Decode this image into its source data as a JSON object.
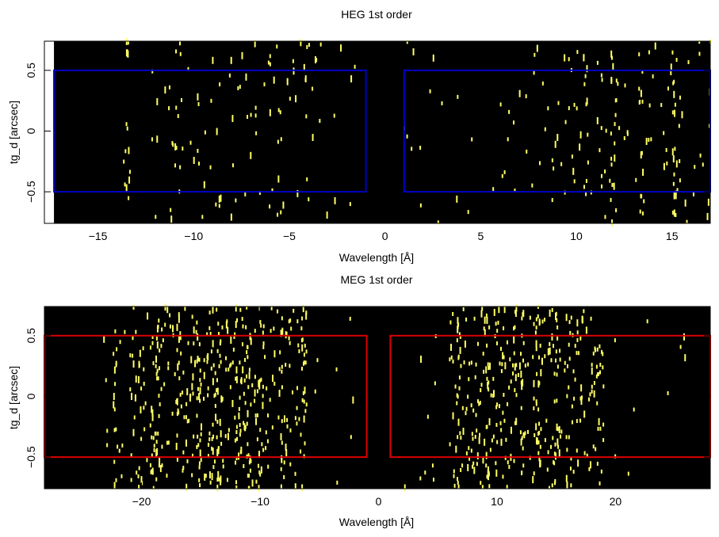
{
  "chart_data": [
    {
      "type": "scatter",
      "title": "HEG 1st order",
      "xlabel": "Wavelength [Å]",
      "ylabel": "tg_d [arcsec]",
      "xlim": [
        -17.8,
        17.0
      ],
      "ylim": [
        -0.76,
        0.74
      ],
      "xticks": [
        -15,
        -10,
        -5,
        0,
        5,
        10,
        15
      ],
      "xtick_labels": [
        "−15",
        "−10",
        "−5",
        "0",
        "5",
        "10",
        "15"
      ],
      "yticks": [
        -0.5,
        0,
        0.5
      ],
      "ytick_labels": [
        "−0.5",
        "0",
        "0.5"
      ],
      "background": "#000000",
      "event_color": "#ffff66",
      "region_color": "#0000cc",
      "masked_below_x": -17.3,
      "regions": [
        {
          "x": [
            -17.3,
            -1.0
          ],
          "y": [
            -0.5,
            0.5
          ]
        },
        {
          "x": [
            1.0,
            17.0
          ],
          "y": [
            -0.5,
            0.5
          ]
        }
      ],
      "density": [
        {
          "x": [
            -12.2,
            -3.2
          ],
          "weight": 1.0
        },
        {
          "x": [
            -3.2,
            -1.5
          ],
          "weight": 0.35
        },
        {
          "x": [
            1.0,
            6.0
          ],
          "weight": 0.35
        },
        {
          "x": [
            6.0,
            17.0
          ],
          "weight": 1.0
        }
      ],
      "stripes": [
        -13.5,
        10.5,
        12.0,
        13.4,
        15.1
      ],
      "event_count": 300
    },
    {
      "type": "scatter",
      "title": "MEG 1st order",
      "xlabel": "Wavelength [Å]",
      "ylabel": "tg_d [arcsec]",
      "xlim": [
        -28.2,
        28.0
      ],
      "ylim": [
        -0.76,
        0.74
      ],
      "xticks": [
        -20,
        -10,
        0,
        10,
        20
      ],
      "xtick_labels": [
        "−20",
        "−10",
        "0",
        "10",
        "20"
      ],
      "yticks": [
        -0.5,
        0,
        0.5
      ],
      "ytick_labels": [
        "−0.5",
        "0",
        "0.5"
      ],
      "background": "#000000",
      "event_color": "#ffff66",
      "region_color": "#dd0000",
      "regions": [
        {
          "x": [
            -28.2,
            -1.0
          ],
          "y": [
            -0.5,
            0.5
          ]
        },
        {
          "x": [
            1.0,
            28.0
          ],
          "y": [
            -0.5,
            0.5
          ]
        }
      ],
      "density": [
        {
          "x": [
            -23.5,
            -21.0
          ],
          "weight": 0.35
        },
        {
          "x": [
            -21.0,
            -6.0
          ],
          "weight": 2.2
        },
        {
          "x": [
            -6.0,
            -2.0
          ],
          "weight": 0.25
        },
        {
          "x": [
            1.5,
            6.0
          ],
          "weight": 0.25
        },
        {
          "x": [
            6.0,
            19.0
          ],
          "weight": 2.2
        },
        {
          "x": [
            19.0,
            26.0
          ],
          "weight": 0.15
        }
      ],
      "stripes": [
        -22.2,
        -19.1,
        -18.6,
        -16.8,
        -15.1,
        -14.1,
        -13.5,
        -12.1,
        -11.0,
        6.8,
        9.2,
        12.1,
        13.5,
        15.0
      ],
      "event_count": 900
    }
  ]
}
